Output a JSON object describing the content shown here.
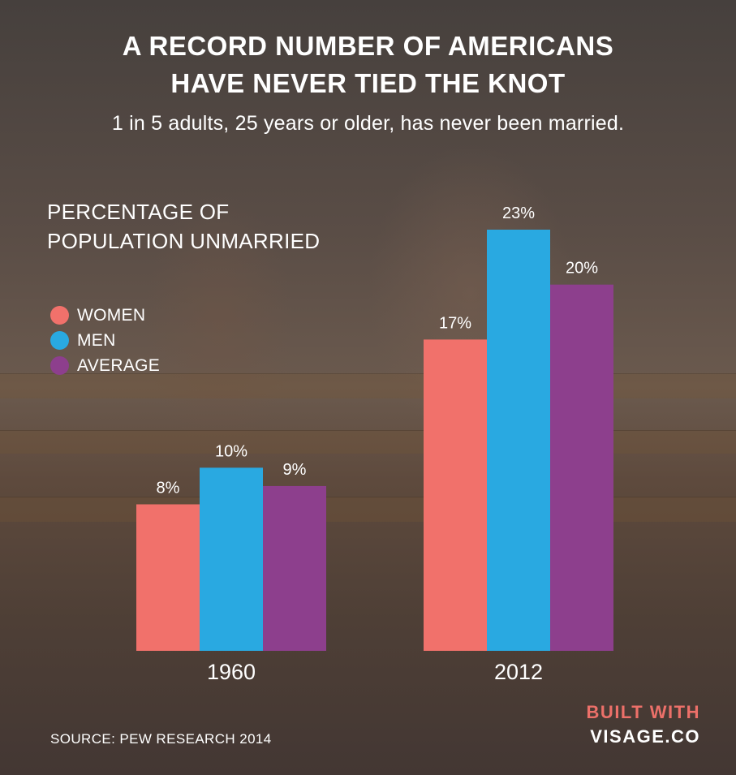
{
  "chart_data": {
    "type": "bar",
    "title": "A RECORD NUMBER OF AMERICANS HAVE NEVER TIED THE KNOT",
    "title_lines": [
      "A RECORD NUMBER OF AMERICANS",
      "HAVE NEVER TIED THE KNOT"
    ],
    "subtitle": "1 in 5 adults, 25 years or older, has never been married.",
    "ylabel_lines": [
      "PERCENTAGE OF",
      "POPULATION UNMARRIED"
    ],
    "xlabel": "",
    "categories": [
      "1960",
      "2012"
    ],
    "series": [
      {
        "name": "WOMEN",
        "color": "#f1716b",
        "values": [
          8,
          17
        ],
        "labels": [
          "8%",
          "17%"
        ]
      },
      {
        "name": "MEN",
        "color": "#29a9e1",
        "values": [
          10,
          23
        ],
        "labels": [
          "10%",
          "23%"
        ]
      },
      {
        "name": "AVERAGE",
        "color": "#8d3f8d",
        "values": [
          9,
          20
        ],
        "labels": [
          "9%",
          "20%"
        ]
      }
    ],
    "ylim": [
      0,
      23
    ],
    "grid": false,
    "legend_position": "left"
  },
  "footer": {
    "source": "SOURCE: PEW RESEARCH 2014",
    "built_with": "BUILT WITH",
    "brand": "VISAGE.CO"
  },
  "colors": {
    "brand_accent": "#ec7069"
  }
}
